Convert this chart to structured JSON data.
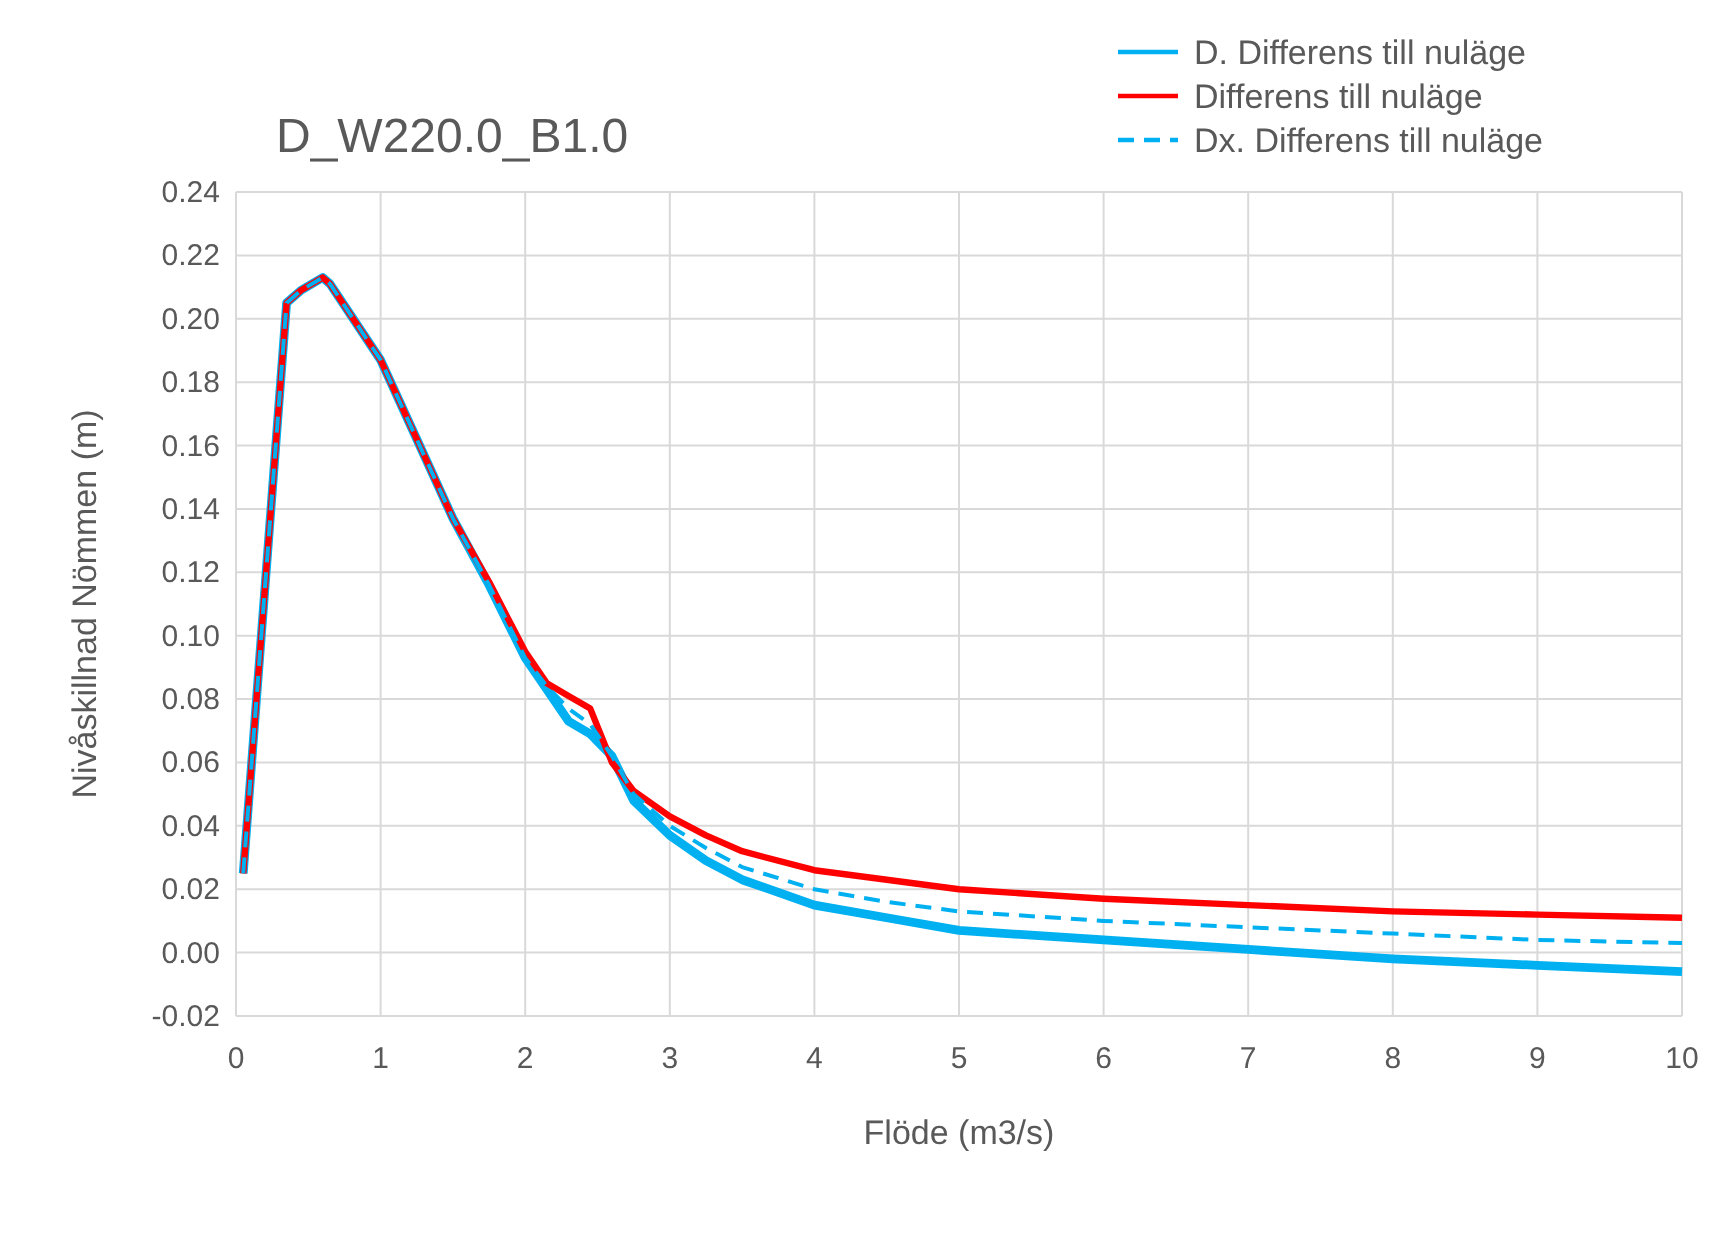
{
  "chart_data": {
    "type": "line",
    "title": "D_W220.0_B1.0",
    "xlabel": "Flöde (m3/s)",
    "ylabel": "Nivåskillnad Nömmen (m)",
    "x": [
      0.05,
      0.35,
      0.45,
      0.6,
      0.65,
      1,
      1.25,
      1.5,
      1.75,
      2,
      2.15,
      2.3,
      2.45,
      2.6,
      2.75,
      3,
      3.25,
      3.5,
      4,
      4.5,
      5,
      6,
      7,
      8,
      9,
      10
    ],
    "series": [
      {
        "name": "D. Differens till nuläge",
        "color": "#00b0f0",
        "line_style": "solid",
        "values": [
          0.025,
          0.205,
          0.209,
          0.213,
          0.211,
          0.187,
          0.162,
          0.137,
          0.116,
          0.093,
          0.083,
          0.073,
          0.069,
          0.062,
          0.048,
          0.037,
          0.029,
          0.023,
          0.015,
          0.011,
          0.007,
          0.004,
          0.001,
          -0.002,
          -0.004,
          -0.006
        ]
      },
      {
        "name": "Differens till nuläge",
        "color": "#ff0000",
        "line_style": "solid",
        "values": [
          0.025,
          0.205,
          0.209,
          0.213,
          0.211,
          0.187,
          0.162,
          0.137,
          0.117,
          0.095,
          0.085,
          0.081,
          0.077,
          0.06,
          0.051,
          0.043,
          0.037,
          0.032,
          0.026,
          0.023,
          0.02,
          0.017,
          0.015,
          0.013,
          0.012,
          0.011
        ]
      },
      {
        "name": "Dx. Differens till nuläge",
        "color": "#00b0f0",
        "line_style": "dashed",
        "values": [
          0.025,
          0.205,
          0.209,
          0.213,
          0.211,
          0.187,
          0.162,
          0.137,
          0.116,
          0.093,
          0.084,
          0.077,
          0.072,
          0.062,
          0.05,
          0.04,
          0.033,
          0.027,
          0.02,
          0.016,
          0.013,
          0.01,
          0.008,
          0.006,
          0.004,
          0.003
        ]
      }
    ],
    "xlim": [
      0,
      10
    ],
    "xticks": [
      0,
      1,
      2,
      3,
      4,
      5,
      6,
      7,
      8,
      9,
      10
    ],
    "ylim": [
      -0.02,
      0.24
    ],
    "yticks": [
      {
        "value": -0.02,
        "label": "-0.02"
      },
      {
        "value": 0,
        "label": "0.00"
      },
      {
        "value": 0.02,
        "label": "0.02"
      },
      {
        "value": 0.04,
        "label": "0.04"
      },
      {
        "value": 0.06,
        "label": "0.06"
      },
      {
        "value": 0.08,
        "label": "0.08"
      },
      {
        "value": 0.1,
        "label": "0.10"
      },
      {
        "value": 0.12,
        "label": "0.12"
      },
      {
        "value": 0.14,
        "label": "0.14"
      },
      {
        "value": 0.16,
        "label": "0.16"
      },
      {
        "value": 0.18,
        "label": "0.18"
      },
      {
        "value": 0.2,
        "label": "0.20"
      },
      {
        "value": 0.22,
        "label": "0.22"
      },
      {
        "value": 0.24,
        "label": "0.24"
      }
    ],
    "grid": true,
    "legend": "top right"
  }
}
